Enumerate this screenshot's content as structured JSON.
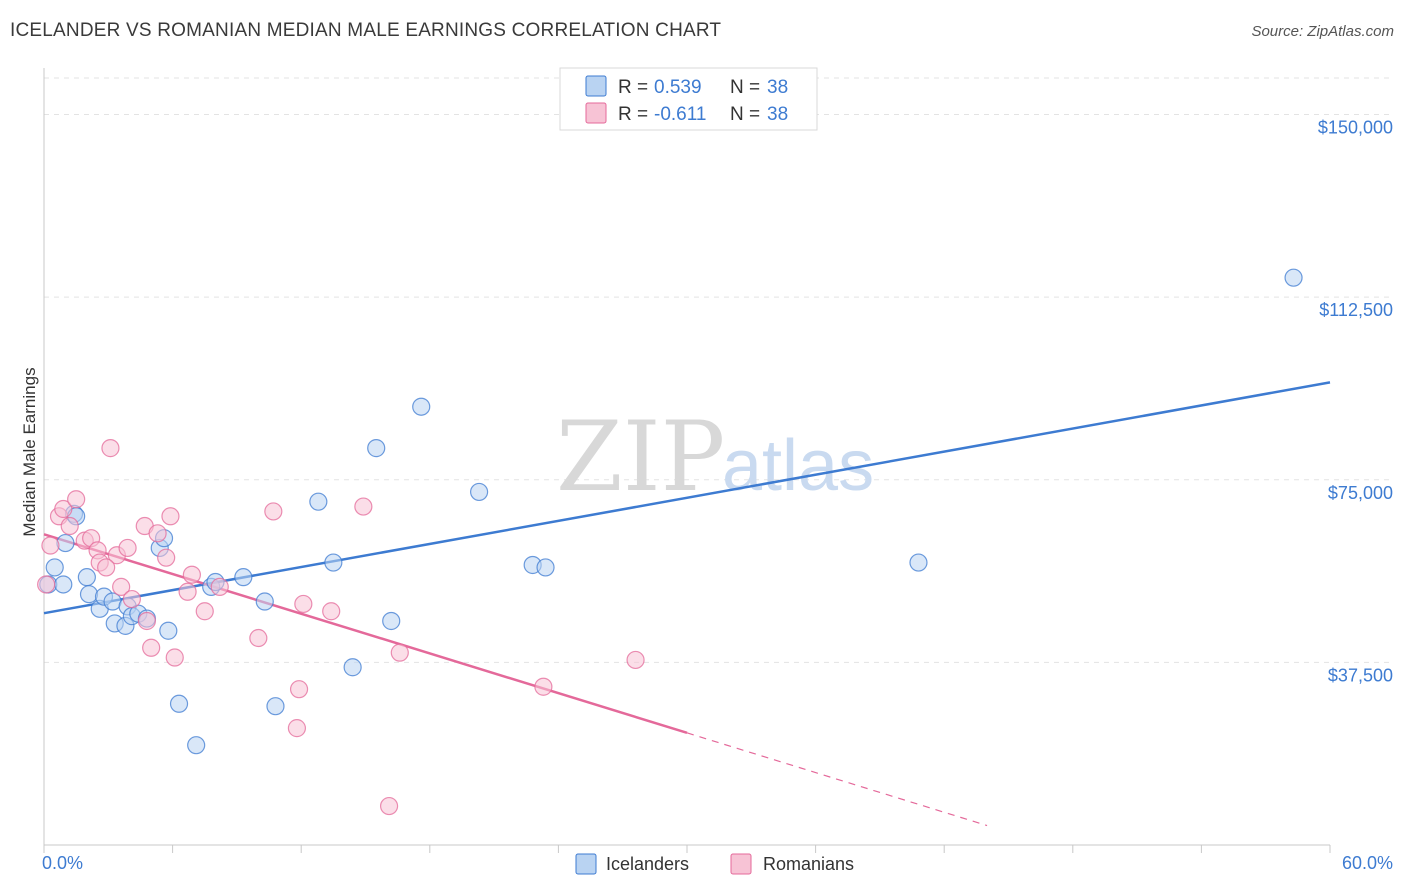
{
  "title": "ICELANDER VS ROMANIAN MEDIAN MALE EARNINGS CORRELATION CHART",
  "source": "Source: ZipAtlas.com",
  "watermark": {
    "zip": "ZIP",
    "atlas": "atlas"
  },
  "colors": {
    "icelanders": "#3d7bd1",
    "icelanders_fill": "#b9d3f2",
    "romanians": "#e4699a",
    "romanians_fill": "#f7c3d5",
    "tick_label": "#3d7bd1",
    "grid": "#e3e3e3"
  },
  "chart_data": {
    "type": "scatter",
    "title": "ICELANDER VS ROMANIAN MEDIAN MALE EARNINGS CORRELATION CHART",
    "xlabel": "",
    "ylabel": "Median Male Earnings",
    "xlim": [
      0,
      60
    ],
    "ylim": [
      0,
      157500
    ],
    "x_tick_labels": {
      "min": "0.0%",
      "max": "60.0%"
    },
    "y_ticks": [
      37500,
      75000,
      112500,
      150000
    ],
    "y_tick_labels": [
      "$37,500",
      "$75,000",
      "$112,500",
      "$150,000"
    ],
    "grid": true,
    "legend": {
      "placement": "top-center",
      "entries": [
        {
          "r_label": "R =",
          "r_value": "0.539",
          "n_label": "N =",
          "n_value": "38"
        },
        {
          "r_label": "R =",
          "r_value": "-0.611",
          "n_label": "N =",
          "n_value": "38"
        }
      ]
    },
    "series": [
      {
        "name": "Icelanders",
        "trend": {
          "x0": 0,
          "y0": 47600,
          "x1": 60,
          "y1": 95000,
          "solid_until": 60
        },
        "points": [
          [
            0.2,
            53500
          ],
          [
            0.5,
            57000
          ],
          [
            0.9,
            53500
          ],
          [
            1.0,
            62000
          ],
          [
            1.4,
            68000
          ],
          [
            1.5,
            67500
          ],
          [
            2.0,
            55000
          ],
          [
            2.1,
            51500
          ],
          [
            2.6,
            48500
          ],
          [
            2.8,
            51000
          ],
          [
            3.2,
            50000
          ],
          [
            3.3,
            45500
          ],
          [
            3.8,
            45000
          ],
          [
            3.9,
            49000
          ],
          [
            4.1,
            47000
          ],
          [
            4.4,
            47500
          ],
          [
            4.8,
            46500
          ],
          [
            5.4,
            61000
          ],
          [
            5.6,
            63000
          ],
          [
            5.8,
            44000
          ],
          [
            6.3,
            29000
          ],
          [
            7.1,
            20500
          ],
          [
            7.8,
            53000
          ],
          [
            8.0,
            54000
          ],
          [
            9.3,
            55000
          ],
          [
            10.3,
            50000
          ],
          [
            10.8,
            28500
          ],
          [
            12.8,
            70500
          ],
          [
            13.5,
            58000
          ],
          [
            14.4,
            36500
          ],
          [
            15.5,
            81500
          ],
          [
            16.2,
            46000
          ],
          [
            17.6,
            90000
          ],
          [
            20.3,
            72500
          ],
          [
            22.8,
            57500
          ],
          [
            23.4,
            57000
          ],
          [
            40.8,
            58000
          ],
          [
            58.3,
            116500
          ]
        ]
      },
      {
        "name": "Romanians",
        "trend": {
          "x0": 0,
          "y0": 63800,
          "x1": 44,
          "y1": 4000,
          "solid_until": 30
        },
        "points": [
          [
            0.1,
            53500
          ],
          [
            0.3,
            61500
          ],
          [
            0.7,
            67500
          ],
          [
            0.9,
            69000
          ],
          [
            1.2,
            65500
          ],
          [
            1.5,
            71000
          ],
          [
            1.9,
            62500
          ],
          [
            2.2,
            63000
          ],
          [
            2.5,
            60500
          ],
          [
            2.6,
            58000
          ],
          [
            3.1,
            81500
          ],
          [
            3.4,
            59500
          ],
          [
            3.6,
            53000
          ],
          [
            3.9,
            61000
          ],
          [
            4.1,
            50500
          ],
          [
            4.7,
            65500
          ],
          [
            4.8,
            46000
          ],
          [
            5.0,
            40500
          ],
          [
            5.3,
            64000
          ],
          [
            5.7,
            59000
          ],
          [
            5.9,
            67500
          ],
          [
            6.1,
            38500
          ],
          [
            6.7,
            52000
          ],
          [
            6.9,
            55500
          ],
          [
            7.5,
            48000
          ],
          [
            10.0,
            42500
          ],
          [
            10.7,
            68500
          ],
          [
            11.8,
            24000
          ],
          [
            11.9,
            32000
          ],
          [
            12.1,
            49500
          ],
          [
            13.4,
            48000
          ],
          [
            14.9,
            69500
          ],
          [
            16.1,
            8000
          ],
          [
            16.6,
            39500
          ],
          [
            23.3,
            32500
          ],
          [
            27.6,
            38000
          ],
          [
            2.9,
            57000
          ],
          [
            8.2,
            53000
          ]
        ]
      }
    ]
  }
}
